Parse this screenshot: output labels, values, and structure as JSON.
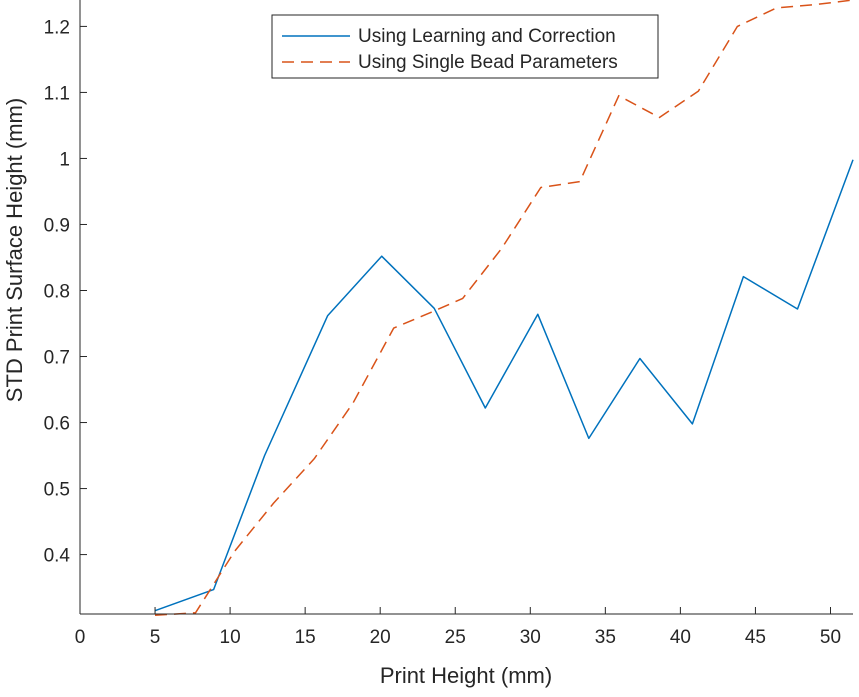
{
  "chart_data": {
    "type": "line",
    "title": "",
    "xlabel": "Print Height (mm)",
    "ylabel": "STD Print Surface Height (mm)",
    "xlim": [
      0,
      51.5
    ],
    "ylim": [
      0.31,
      1.24
    ],
    "xticks": [
      0,
      5,
      10,
      15,
      20,
      25,
      30,
      35,
      40,
      45,
      50
    ],
    "yticks": [
      0.4,
      0.5,
      0.6,
      0.7,
      0.8,
      0.9,
      1.0,
      1.1,
      1.2
    ],
    "ytick_labels": [
      "0.4",
      "0.5",
      "0.6",
      "0.7",
      "0.8",
      "0.9",
      "1",
      "1.1",
      "1.2"
    ],
    "legend_position": "top-center",
    "series": [
      {
        "name": "Using Learning and Correction",
        "color": "#0072BD",
        "style": "solid",
        "x": [
          5.0,
          8.9,
          12.3,
          16.5,
          20.1,
          23.6,
          27.0,
          30.5,
          33.9,
          37.3,
          40.8,
          44.2,
          47.8,
          51.5
        ],
        "y": [
          0.315,
          0.347,
          0.55,
          0.762,
          0.852,
          0.773,
          0.622,
          0.764,
          0.576,
          0.697,
          0.598,
          0.821,
          0.772,
          0.998
        ]
      },
      {
        "name": "Using Single Bead Parameters",
        "color": "#D95319",
        "style": "dashed",
        "x": [
          5.0,
          7.7,
          10.3,
          12.9,
          15.6,
          18.2,
          20.9,
          23.5,
          25.5,
          28.1,
          30.7,
          33.3,
          35.9,
          38.6,
          41.2,
          43.8,
          46.4,
          49.0,
          51.5
        ],
        "y": [
          0.308,
          0.312,
          0.405,
          0.478,
          0.545,
          0.63,
          0.743,
          0.768,
          0.788,
          0.864,
          0.956,
          0.965,
          1.095,
          1.062,
          1.102,
          1.2,
          1.228,
          1.233,
          1.24
        ]
      }
    ]
  }
}
